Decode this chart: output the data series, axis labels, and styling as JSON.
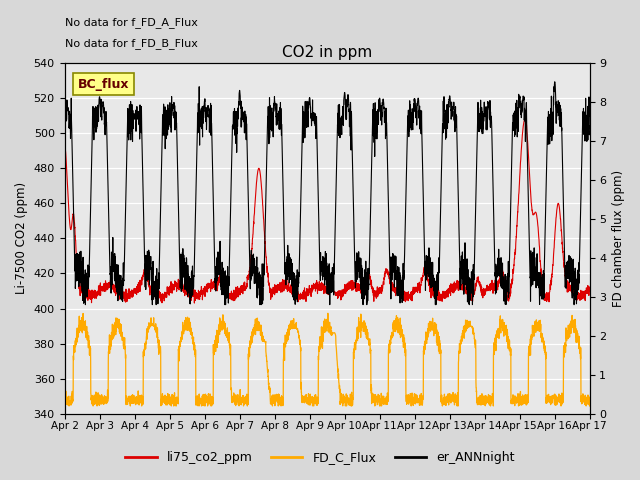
{
  "title": "CO2 in ppm",
  "ylabel_left": "Li-7500 CO2 (ppm)",
  "ylabel_right": "FD chamber flux (ppm)",
  "ylim_left": [
    340,
    540
  ],
  "ylim_right": [
    0.0,
    9.0
  ],
  "yticks_left": [
    340,
    360,
    380,
    400,
    420,
    440,
    460,
    480,
    500,
    520,
    540
  ],
  "yticks_right": [
    0.0,
    1.0,
    2.0,
    3.0,
    4.0,
    5.0,
    6.0,
    7.0,
    8.0,
    9.0
  ],
  "xtick_labels": [
    "Apr 2",
    "Apr 3",
    "Apr 4",
    "Apr 5",
    "Apr 6",
    "Apr 7",
    "Apr 8",
    "Apr 9",
    "Apr 10",
    "Apr 11",
    "Apr 12",
    "Apr 13",
    "Apr 14",
    "Apr 15",
    "Apr 16",
    "Apr 17"
  ],
  "color_red": "#dd0000",
  "color_orange": "#ffaa00",
  "color_black": "#000000",
  "legend_labels": [
    "li75_co2_ppm",
    "FD_C_Flux",
    "er_ANNnight"
  ],
  "note1": "No data for f_FD_A_Flux",
  "note2": "No data for f_FD_B_Flux",
  "bc_flux_label": "BC_flux",
  "fig_bg": "#d8d8d8",
  "plot_bg": "#e8e8e8"
}
